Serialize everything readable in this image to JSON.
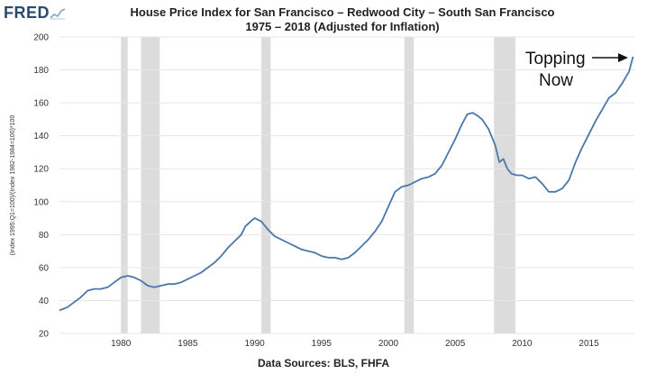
{
  "logo": {
    "text": "FRED"
  },
  "title_line1": "House Price Index for San Francisco – Redwood City – South San Francisco",
  "title_line2": "1975 – 2018     (Adjusted for Inflation)",
  "source": "Data Sources:  BLS, FHFA",
  "annotation": {
    "line1": "Topping",
    "line2": "Now"
  },
  "colors": {
    "line": "#4a77aa",
    "recession": "#dcdcdc",
    "grid": "#e6e6e6",
    "logo": "#2b4a6f"
  },
  "chart_data": {
    "type": "line",
    "title": "House Price Index for San Francisco – Redwood City – South San Francisco 1975 – 2018 (Adjusted for Inflation)",
    "ylabel": "(Index 1995:Q1=100)/(Index 1982-1984=100)*100",
    "xlabel": "",
    "xlim": [
      1975.4,
      2018.4
    ],
    "ylim": [
      20,
      200
    ],
    "x_ticks": [
      1980,
      1985,
      1990,
      1995,
      2000,
      2005,
      2010,
      2015
    ],
    "y_ticks": [
      20,
      40,
      60,
      80,
      100,
      120,
      140,
      160,
      180,
      200
    ],
    "grid": true,
    "recessions": [
      [
        1980.0,
        1980.5
      ],
      [
        1981.5,
        1982.9
      ],
      [
        1990.5,
        1991.2
      ],
      [
        2001.2,
        2001.9
      ],
      [
        2007.9,
        2009.5
      ]
    ],
    "series": [
      {
        "x": [
          1975.4,
          1976,
          1976.5,
          1977,
          1977.5,
          1978,
          1978.5,
          1979,
          1979.5,
          1980,
          1980.5,
          1981,
          1981.5,
          1982,
          1982.5,
          1983,
          1983.5,
          1984,
          1984.5,
          1985,
          1985.5,
          1986,
          1986.5,
          1987,
          1987.5,
          1988,
          1988.5,
          1989,
          1989.3,
          1989.7,
          1990,
          1990.5,
          1991,
          1991.5,
          1992,
          1992.5,
          1993,
          1993.5,
          1994,
          1994.5,
          1995,
          1995.5,
          1996,
          1996.5,
          1997,
          1997.5,
          1998,
          1998.5,
          1999,
          1999.5,
          2000,
          2000.5,
          2001,
          2001.5,
          2002,
          2002.5,
          2003,
          2003.5,
          2004,
          2004.5,
          2005,
          2005.5,
          2005.9,
          2006.3,
          2006.7,
          2007,
          2007.5,
          2008,
          2008.3,
          2008.6,
          2008.9,
          2009.2,
          2009.6,
          2010,
          2010.5,
          2011,
          2011.5,
          2012,
          2012.5,
          2013,
          2013.5,
          2014,
          2014.5,
          2015,
          2015.5,
          2016,
          2016.5,
          2017,
          2017.5,
          2018,
          2018.3
        ],
        "values": [
          34,
          36,
          39,
          42,
          46,
          47,
          47,
          48,
          51,
          54,
          55,
          54,
          52,
          49,
          48,
          49,
          50,
          50,
          51,
          53,
          55,
          57,
          60,
          63,
          67,
          72,
          76,
          80,
          85,
          88,
          90,
          88,
          83,
          79,
          77,
          75,
          73,
          71,
          70,
          69,
          67,
          66,
          66,
          65,
          66,
          69,
          73,
          77,
          82,
          88,
          97,
          106,
          109,
          110,
          112,
          114,
          115,
          117,
          122,
          130,
          138,
          147,
          153,
          154,
          152,
          150,
          144,
          134,
          124,
          126,
          120,
          117,
          116,
          116,
          114,
          115,
          111,
          106,
          106,
          108,
          113,
          124,
          133,
          141,
          149,
          156,
          163,
          166,
          172,
          179,
          188
        ]
      }
    ]
  }
}
